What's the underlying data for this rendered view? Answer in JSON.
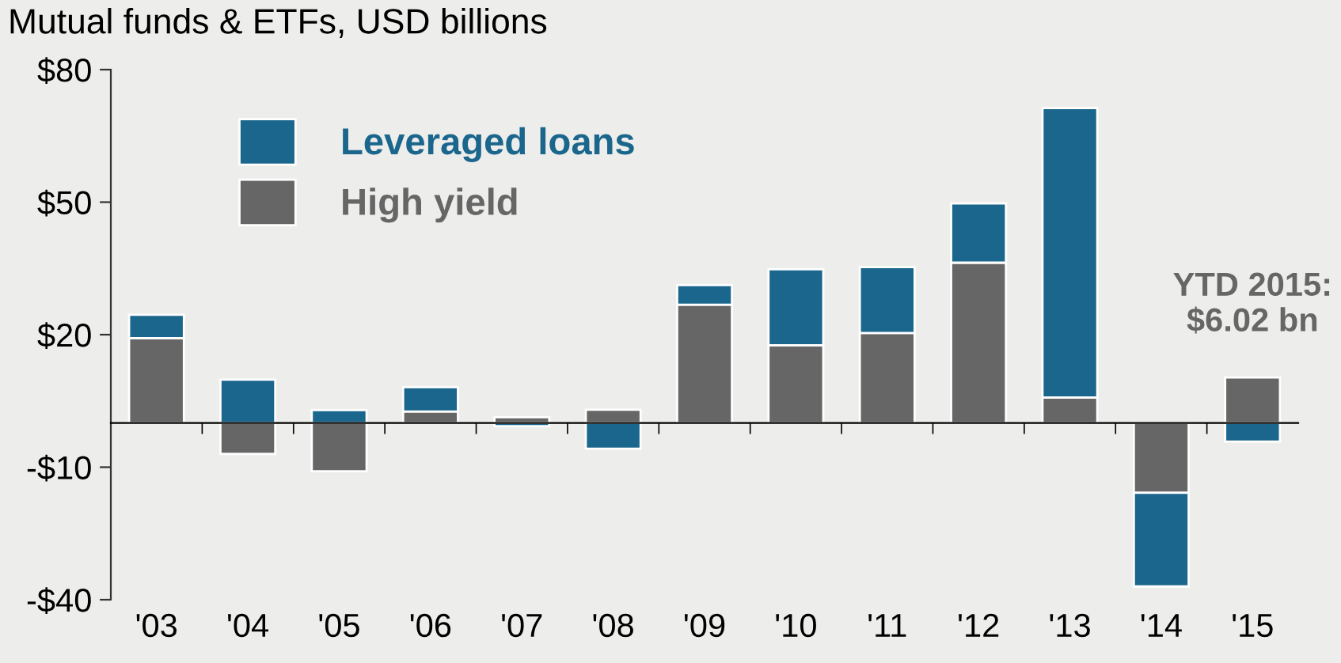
{
  "chart_data": {
    "type": "bar",
    "stacked": true,
    "subtitle": "Mutual funds & ETFs, USD billions",
    "categories": [
      "'03",
      "'04",
      "'05",
      "'06",
      "'07",
      "'08",
      "'09",
      "'10",
      "'11",
      "'12",
      "'13",
      "'14",
      "'15"
    ],
    "series": [
      {
        "name": "High yield",
        "color": "#666666",
        "values": [
          19.2,
          -7.0,
          -10.9,
          2.6,
          1.3,
          3.0,
          26.8,
          17.6,
          20.4,
          36.3,
          5.8,
          -15.8,
          10.3
        ]
      },
      {
        "name": "Leveraged loans",
        "color": "#1a668c",
        "values": [
          5.3,
          9.8,
          2.9,
          5.5,
          -0.7,
          -5.8,
          4.4,
          17.2,
          14.9,
          13.4,
          65.5,
          -21.2,
          -4.2
        ]
      }
    ],
    "ylim": [
      -40,
      80
    ],
    "yticks": [
      {
        "value": 80,
        "label": "$80"
      },
      {
        "value": 50,
        "label": "$50"
      },
      {
        "value": 20,
        "label": "$20"
      },
      {
        "value": -10,
        "label": "-$10"
      },
      {
        "value": -40,
        "label": "-$40"
      }
    ],
    "grid": false,
    "legend": "top left",
    "annotations": [
      {
        "text": "YTD 2015:\n$6.02 bn",
        "x": "'15",
        "y": 10.3
      }
    ]
  }
}
